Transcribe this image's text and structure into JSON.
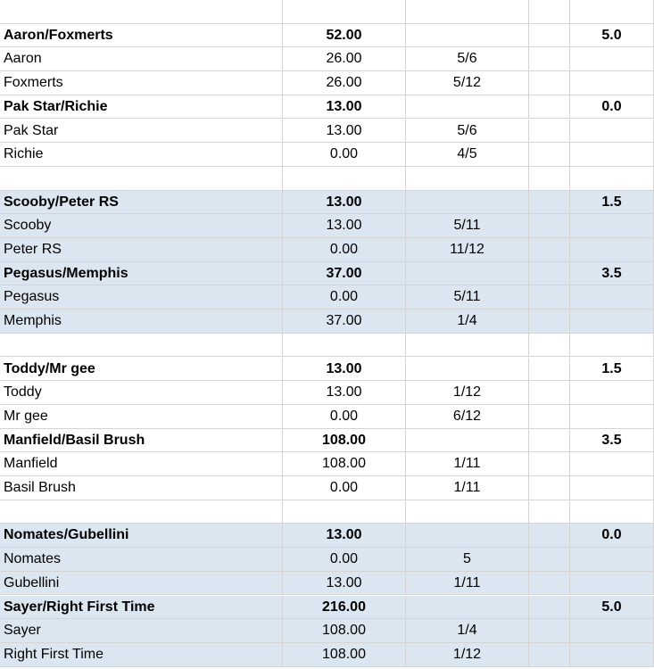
{
  "sheet": {
    "rows": [
      {
        "name": "",
        "amount": "",
        "ratio": "",
        "score": "",
        "bold": false,
        "blue": false
      },
      {
        "name": "Aaron/Foxmerts",
        "amount": "52.00",
        "ratio": "",
        "score": "5.0",
        "bold": true,
        "blue": false
      },
      {
        "name": "Aaron",
        "amount": "26.00",
        "ratio": "5/6",
        "score": "",
        "bold": false,
        "blue": false
      },
      {
        "name": "Foxmerts",
        "amount": "26.00",
        "ratio": "5/12",
        "score": "",
        "bold": false,
        "blue": false
      },
      {
        "name": "Pak Star/Richie",
        "amount": "13.00",
        "ratio": "",
        "score": "0.0",
        "bold": true,
        "blue": false
      },
      {
        "name": "Pak Star",
        "amount": "13.00",
        "ratio": "5/6",
        "score": "",
        "bold": false,
        "blue": false
      },
      {
        "name": "Richie",
        "amount": "0.00",
        "ratio": "4/5",
        "score": "",
        "bold": false,
        "blue": false
      },
      {
        "name": "",
        "amount": "",
        "ratio": "",
        "score": "",
        "bold": false,
        "blue": false
      },
      {
        "name": "Scooby/Peter RS",
        "amount": "13.00",
        "ratio": "",
        "score": "1.5",
        "bold": true,
        "blue": true
      },
      {
        "name": "Scooby",
        "amount": "13.00",
        "ratio": "5/11",
        "score": "",
        "bold": false,
        "blue": true
      },
      {
        "name": "Peter RS",
        "amount": "0.00",
        "ratio": "11/12",
        "score": "",
        "bold": false,
        "blue": true
      },
      {
        "name": "Pegasus/Memphis",
        "amount": "37.00",
        "ratio": "",
        "score": "3.5",
        "bold": true,
        "blue": true
      },
      {
        "name": "Pegasus",
        "amount": "0.00",
        "ratio": "5/11",
        "score": "",
        "bold": false,
        "blue": true
      },
      {
        "name": "Memphis",
        "amount": "37.00",
        "ratio": "1/4",
        "score": "",
        "bold": false,
        "blue": true
      },
      {
        "name": "",
        "amount": "",
        "ratio": "",
        "score": "",
        "bold": false,
        "blue": false
      },
      {
        "name": "Toddy/Mr gee",
        "amount": "13.00",
        "ratio": "",
        "score": "1.5",
        "bold": true,
        "blue": false
      },
      {
        "name": "Toddy",
        "amount": "13.00",
        "ratio": "1/12",
        "score": "",
        "bold": false,
        "blue": false
      },
      {
        "name": "Mr gee",
        "amount": "0.00",
        "ratio": "6/12",
        "score": "",
        "bold": false,
        "blue": false
      },
      {
        "name": "Manfield/Basil Brush",
        "amount": "108.00",
        "ratio": "",
        "score": "3.5",
        "bold": true,
        "blue": false
      },
      {
        "name": "Manfield",
        "amount": "108.00",
        "ratio": "1/11",
        "score": "",
        "bold": false,
        "blue": false
      },
      {
        "name": "Basil Brush",
        "amount": "0.00",
        "ratio": "1/11",
        "score": "",
        "bold": false,
        "blue": false
      },
      {
        "name": "",
        "amount": "",
        "ratio": "",
        "score": "",
        "bold": false,
        "blue": false
      },
      {
        "name": "Nomates/Gubellini",
        "amount": "13.00",
        "ratio": "",
        "score": "0.0",
        "bold": true,
        "blue": true
      },
      {
        "name": "Nomates",
        "amount": "0.00",
        "ratio": "5",
        "score": "",
        "bold": false,
        "blue": true
      },
      {
        "name": "Gubellini",
        "amount": "13.00",
        "ratio": "1/11",
        "score": "",
        "bold": false,
        "blue": true
      },
      {
        "name": "Sayer/Right First Time",
        "amount": "216.00",
        "ratio": "",
        "score": "5.0",
        "bold": true,
        "blue": true
      },
      {
        "name": "Sayer",
        "amount": "108.00",
        "ratio": "1/4",
        "score": "",
        "bold": false,
        "blue": true
      },
      {
        "name": "Right First Time",
        "amount": "108.00",
        "ratio": "1/12",
        "score": "",
        "bold": false,
        "blue": true
      }
    ]
  }
}
